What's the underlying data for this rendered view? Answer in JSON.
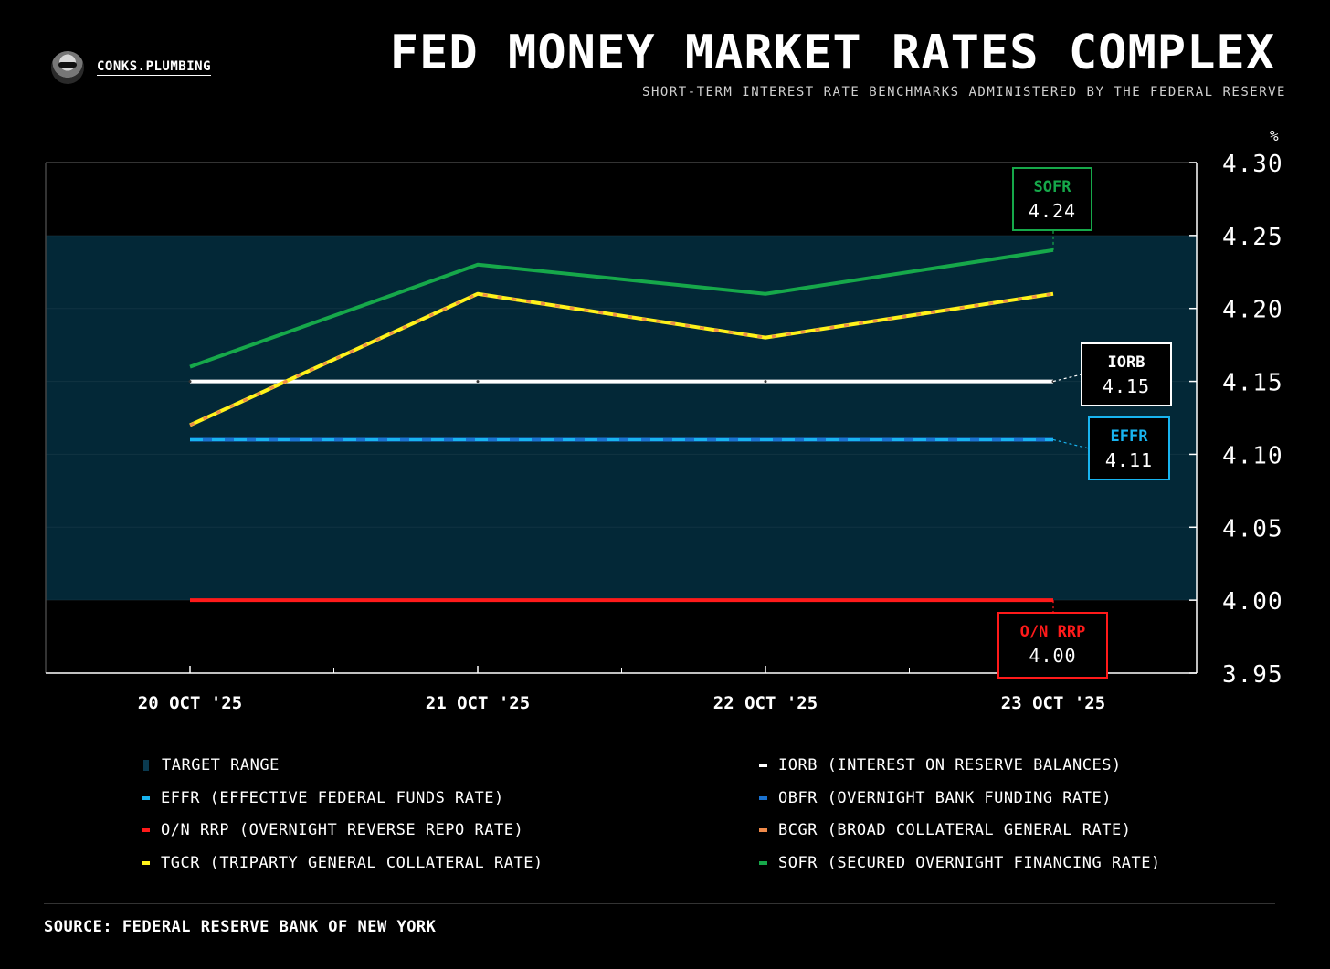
{
  "brand": {
    "name": "CONKS.PLUMBING"
  },
  "title": "FED MONEY MARKET RATES COMPLEX",
  "subtitle": "SHORT-TERM INTEREST RATE BENCHMARKS ADMINISTERED BY THE FEDERAL RESERVE",
  "source": "SOURCE: FEDERAL RESERVE BANK OF NEW YORK",
  "chart_data": {
    "type": "line",
    "title": "FED MONEY MARKET RATES COMPLEX",
    "ylabel": "%",
    "xlabel": "",
    "ylim": [
      3.95,
      4.3
    ],
    "yticks": [
      "4.30",
      "4.25",
      "4.20",
      "4.15",
      "4.10",
      "4.05",
      "4.00",
      "3.95"
    ],
    "ytick_values": [
      4.3,
      4.25,
      4.2,
      4.15,
      4.1,
      4.05,
      4.0,
      3.95
    ],
    "categories": [
      "20 OCT '25",
      "21 OCT '25",
      "22 OCT '25",
      "23 OCT '25"
    ],
    "target_range": {
      "name": "TARGET RANGE",
      "low": 4.0,
      "high": 4.25,
      "color": "#032837"
    },
    "series": [
      {
        "key": "iorb",
        "name": "IORB",
        "legend": "IORB (INTEREST ON RESERVE BALANCES)",
        "values": [
          4.15,
          4.15,
          4.15,
          4.15
        ],
        "color": "#ffffff",
        "style": "solid"
      },
      {
        "key": "obfr",
        "name": "OBFR",
        "legend": "OBFR (OVERNIGHT BANK FUNDING RATE)",
        "values": [
          4.11,
          4.11,
          4.11,
          4.11
        ],
        "color": "#1a72d0",
        "style": "solid"
      },
      {
        "key": "effr",
        "name": "EFFR",
        "legend": "EFFR (EFFECTIVE FEDERAL FUNDS RATE)",
        "values": [
          4.11,
          4.11,
          4.11,
          4.11
        ],
        "color": "#18b4f0",
        "style": "dashed"
      },
      {
        "key": "onrrp",
        "name": "O/N RRP",
        "legend": "O/N RRP (OVERNIGHT REVERSE REPO RATE)",
        "values": [
          4.0,
          4.0,
          4.0,
          4.0
        ],
        "color": "#ff1a1a",
        "style": "solid"
      },
      {
        "key": "tgcr",
        "name": "TGCR",
        "legend": "TGCR (TRIPARTY GENERAL COLLATERAL RATE)",
        "values": [
          4.12,
          4.21,
          4.18,
          4.21
        ],
        "color": "#fff21a",
        "style": "solid"
      },
      {
        "key": "bcgr",
        "name": "BCGR",
        "legend": "BCGR (BROAD COLLATERAL GENERAL RATE)",
        "values": [
          4.12,
          4.21,
          4.18,
          4.21
        ],
        "color": "#f08a4a",
        "style": "dashed"
      },
      {
        "key": "sofr",
        "name": "SOFR",
        "legend": "SOFR (SECURED OVERNIGHT FINANCING RATE)",
        "values": [
          4.16,
          4.23,
          4.21,
          4.24
        ],
        "color": "#16a84a",
        "style": "solid"
      }
    ],
    "callouts": [
      {
        "series": "sofr",
        "label": "SOFR",
        "value": "4.24",
        "color": "#16a84a"
      },
      {
        "series": "iorb",
        "label": "IORB",
        "value": "4.15",
        "color": "#ffffff"
      },
      {
        "series": "effr",
        "label": "EFFR",
        "value": "4.11",
        "color": "#18b4f0"
      },
      {
        "series": "onrrp",
        "label": "O/N RRP",
        "value": "4.00",
        "color": "#ff1a1a"
      }
    ],
    "legend_order": [
      {
        "label": "TARGET RANGE",
        "color": "#032837"
      },
      {
        "label": "IORB (INTEREST ON RESERVE BALANCES)",
        "color": "#ffffff"
      },
      {
        "label": "EFFR (EFFECTIVE FEDERAL FUNDS RATE)",
        "color": "#18b4f0"
      },
      {
        "label": "OBFR (OVERNIGHT BANK FUNDING RATE)",
        "color": "#1a72d0"
      },
      {
        "label": "O/N RRP (OVERNIGHT REVERSE REPO RATE)",
        "color": "#ff1a1a"
      },
      {
        "label": "BCGR (BROAD COLLATERAL GENERAL RATE)",
        "color": "#f08a4a"
      },
      {
        "label": "TGCR (TRIPARTY GENERAL COLLATERAL RATE)",
        "color": "#fff21a"
      },
      {
        "label": "SOFR (SECURED OVERNIGHT FINANCING RATE)",
        "color": "#16a84a"
      }
    ]
  }
}
